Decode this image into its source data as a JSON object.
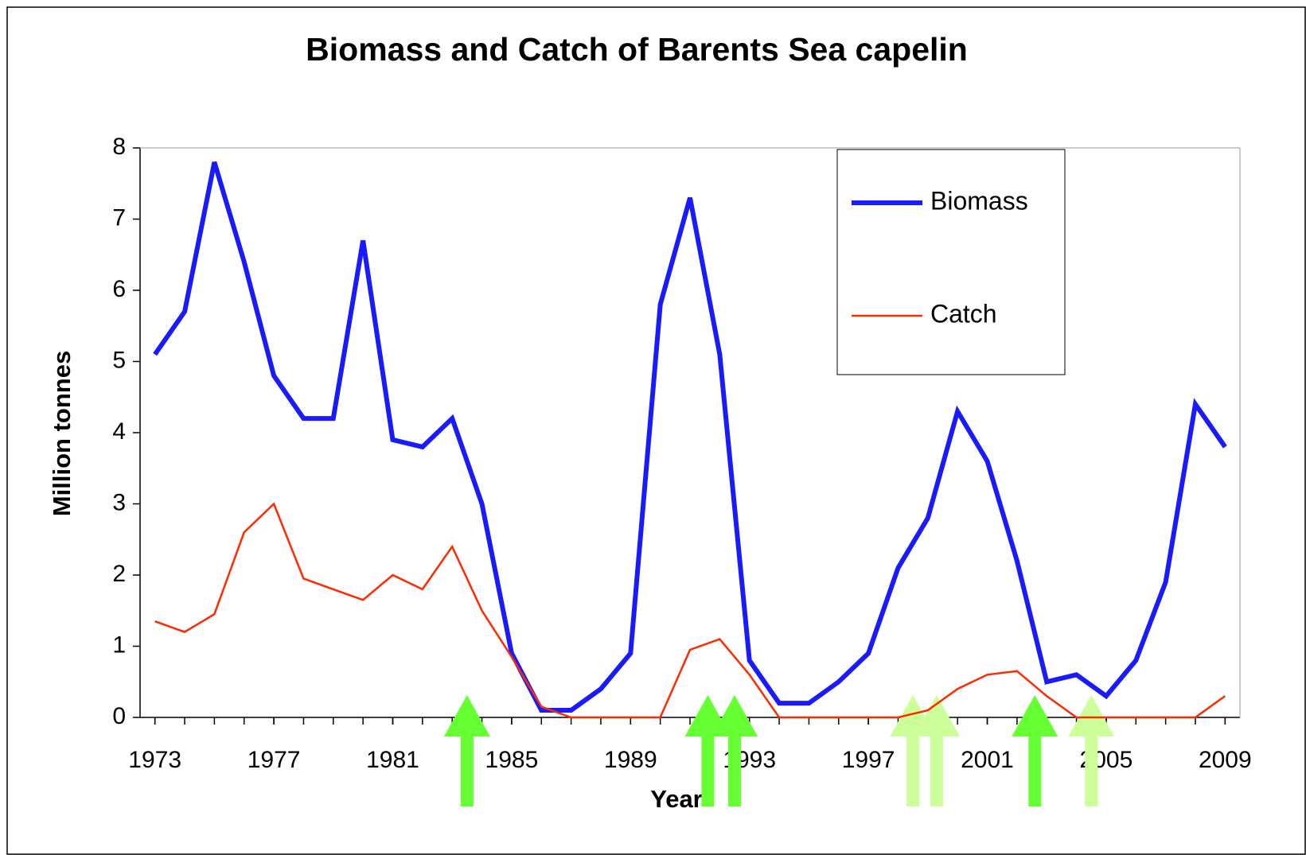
{
  "chart_data": {
    "type": "line",
    "title": "Biomass and Catch of Barents Sea capelin",
    "x_label": "Year",
    "y_label": "Million tonnes",
    "x": [
      1973,
      1974,
      1975,
      1976,
      1977,
      1978,
      1979,
      1980,
      1981,
      1982,
      1983,
      1984,
      1985,
      1986,
      1987,
      1988,
      1989,
      1990,
      1991,
      1992,
      1993,
      1994,
      1995,
      1996,
      1997,
      1998,
      1999,
      2000,
      2001,
      2002,
      2003,
      2004,
      2005,
      2006,
      2007,
      2008,
      2009
    ],
    "series": [
      {
        "name": "Biomass",
        "color": "#1a1aff",
        "values": [
          5.1,
          5.7,
          7.8,
          6.4,
          4.8,
          4.2,
          4.2,
          6.7,
          3.9,
          3.8,
          4.2,
          3.0,
          0.9,
          0.1,
          0.1,
          0.4,
          0.9,
          5.8,
          7.3,
          5.1,
          0.8,
          0.2,
          0.2,
          0.5,
          0.9,
          2.1,
          2.8,
          4.3,
          3.6,
          2.2,
          0.5,
          0.6,
          0.3,
          0.8,
          1.9,
          4.4,
          3.8
        ]
      },
      {
        "name": "Catch",
        "color": "#ff2a00",
        "values": [
          1.35,
          1.2,
          1.45,
          2.6,
          3.0,
          1.95,
          1.8,
          1.65,
          2.0,
          1.8,
          2.4,
          1.5,
          0.85,
          0.15,
          0.0,
          0.0,
          0.0,
          0.0,
          0.95,
          1.1,
          0.6,
          0.0,
          0.0,
          0.0,
          0.0,
          0.0,
          0.1,
          0.4,
          0.6,
          0.65,
          0.3,
          0.0,
          0.0,
          0.0,
          0.0,
          0.0,
          0.3
        ]
      }
    ],
    "xlim": [
      1972.5,
      2009.5
    ],
    "xticks": [
      1973,
      1977,
      1981,
      1985,
      1989,
      1993,
      1997,
      2001,
      2005,
      2009
    ],
    "ylim": [
      0,
      8
    ],
    "yticks": [
      0,
      1,
      2,
      3,
      4,
      5,
      6,
      7,
      8
    ],
    "legend": "top-right",
    "arrows": [
      {
        "x": 1983.5,
        "color": "#66ff33"
      },
      {
        "x": 1991.6,
        "color": "#66ff33"
      },
      {
        "x": 1992.5,
        "color": "#66ff33"
      },
      {
        "x": 1998.5,
        "color": "#ccff99"
      },
      {
        "x": 1999.3,
        "color": "#ccff99"
      },
      {
        "x": 2002.6,
        "color": "#66ff33"
      },
      {
        "x": 2004.5,
        "color": "#ccff99"
      }
    ]
  }
}
